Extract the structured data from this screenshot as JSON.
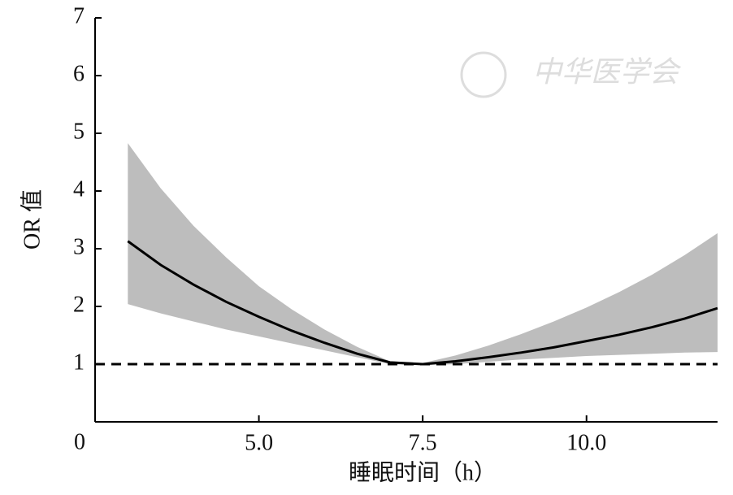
{
  "chart_data": {
    "type": "line",
    "xlabel": "睡眠时间（h）",
    "ylabel": "OR 值",
    "watermark": "中华医学会",
    "x": [
      3,
      3.5,
      4,
      4.5,
      5,
      5.5,
      6,
      6.5,
      7,
      7.5,
      8,
      8.5,
      9,
      9.5,
      10,
      10.5,
      11,
      11.5,
      12
    ],
    "series": [
      {
        "color": "#000000",
        "values": [
          3.13,
          2.72,
          2.38,
          2.08,
          1.82,
          1.58,
          1.37,
          1.18,
          1.03,
          1.0,
          1.05,
          1.12,
          1.2,
          1.29,
          1.4,
          1.51,
          1.64,
          1.79,
          1.97
        ]
      }
    ],
    "band": {
      "color": "#bdbdbd",
      "upper": [
        4.83,
        4.05,
        3.4,
        2.85,
        2.35,
        1.95,
        1.6,
        1.3,
        1.05,
        1.02,
        1.15,
        1.32,
        1.52,
        1.74,
        1.98,
        2.25,
        2.55,
        2.89,
        3.27
      ],
      "lower": [
        2.04,
        1.88,
        1.74,
        1.6,
        1.48,
        1.36,
        1.24,
        1.12,
        1.0,
        0.98,
        1.0,
        1.04,
        1.08,
        1.11,
        1.14,
        1.16,
        1.18,
        1.2,
        1.21
      ]
    },
    "reference_y": 1,
    "xlim": [
      2.5,
      12
    ],
    "xticks": [
      {
        "value": 5,
        "label": "5.0"
      },
      7.5,
      {
        "value": 10,
        "label": "10.0"
      }
    ],
    "ylim": [
      0,
      7
    ],
    "yticks": [
      0,
      1,
      2,
      3,
      4,
      5,
      6,
      7
    ]
  }
}
